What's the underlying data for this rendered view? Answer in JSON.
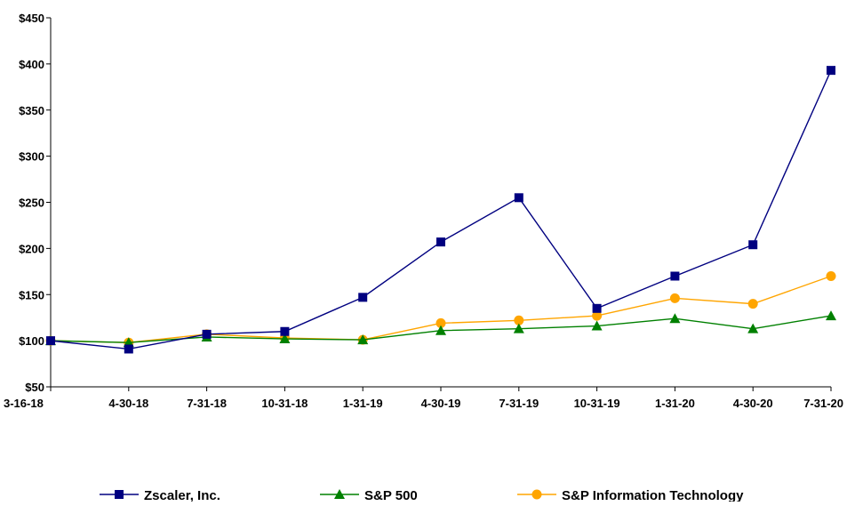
{
  "chart_data": {
    "type": "line",
    "categories": [
      "3-16-18",
      "4-30-18",
      "7-31-18",
      "10-31-18",
      "1-31-19",
      "4-30-19",
      "7-31-19",
      "10-31-19",
      "1-31-20",
      "4-30-20",
      "7-31-20"
    ],
    "y_ticks": [
      "$50",
      "$100",
      "$150",
      "$200",
      "$250",
      "$300",
      "$350",
      "$400",
      "$450"
    ],
    "ylim": [
      50,
      450
    ],
    "grid": false,
    "legend_position": "bottom",
    "series": [
      {
        "name": "Zscaler, Inc.",
        "color": "#000080",
        "marker": "square",
        "values": [
          100,
          91,
          107,
          110,
          147,
          207,
          255,
          135,
          170,
          204,
          393
        ]
      },
      {
        "name": "S&P 500",
        "color": "#008000",
        "marker": "triangle",
        "values": [
          100,
          98,
          104,
          102,
          101,
          111,
          113,
          116,
          124,
          113,
          127
        ]
      },
      {
        "name": "S&P Information Technology",
        "color": "#FFA500",
        "marker": "circle",
        "values": [
          100,
          98,
          107,
          103,
          101,
          119,
          122,
          127,
          146,
          140,
          170
        ]
      }
    ]
  }
}
